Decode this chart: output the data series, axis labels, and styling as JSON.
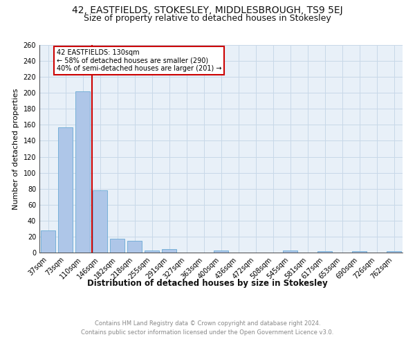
{
  "title": "42, EASTFIELDS, STOKESLEY, MIDDLESBROUGH, TS9 5EJ",
  "subtitle": "Size of property relative to detached houses in Stokesley",
  "xlabel": "Distribution of detached houses by size in Stokesley",
  "ylabel": "Number of detached properties",
  "footer_line1": "Contains HM Land Registry data © Crown copyright and database right 2024.",
  "footer_line2": "Contains public sector information licensed under the Open Government Licence v3.0.",
  "bar_labels": [
    "37sqm",
    "73sqm",
    "110sqm",
    "146sqm",
    "182sqm",
    "218sqm",
    "255sqm",
    "291sqm",
    "327sqm",
    "363sqm",
    "400sqm",
    "436sqm",
    "472sqm",
    "508sqm",
    "545sqm",
    "581sqm",
    "617sqm",
    "653sqm",
    "690sqm",
    "726sqm",
    "762sqm"
  ],
  "bar_values": [
    28,
    157,
    202,
    78,
    17,
    15,
    3,
    4,
    0,
    0,
    3,
    0,
    0,
    0,
    3,
    0,
    2,
    0,
    2,
    0,
    2
  ],
  "bar_color": "#aec6e8",
  "bar_edge_color": "#6aaad4",
  "property_label": "42 EASTFIELDS: 130sqm",
  "annotation_line1": "← 58% of detached houses are smaller (290)",
  "annotation_line2": "40% of semi-detached houses are larger (201) →",
  "vline_color": "#cc0000",
  "annotation_box_edge": "#cc0000",
  "ylim": [
    0,
    260
  ],
  "yticks": [
    0,
    20,
    40,
    60,
    80,
    100,
    120,
    140,
    160,
    180,
    200,
    220,
    240,
    260
  ],
  "grid_color": "#c8d8e8",
  "background_color": "#e8f0f8",
  "title_fontsize": 10,
  "subtitle_fontsize": 9,
  "tick_fontsize": 7,
  "ylabel_fontsize": 8,
  "xlabel_fontsize": 8.5
}
